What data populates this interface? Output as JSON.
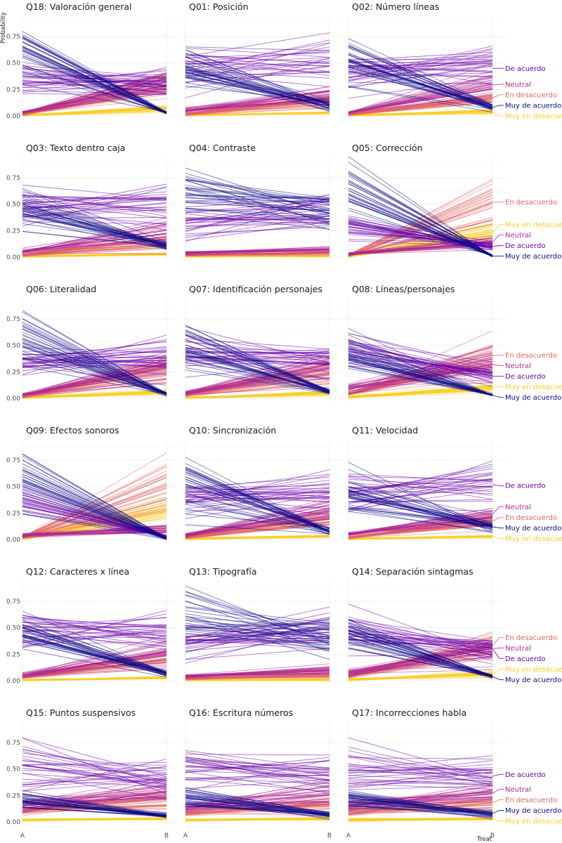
{
  "chart_data": {
    "type": "line",
    "description": "Faceted spaghetti plot of posterior-draw probabilities per response level, from A to B",
    "ylabel": "Probability",
    "xlabel": "Treat",
    "x_categories": [
      "A",
      "B"
    ],
    "ylim": [
      0,
      0.95
    ],
    "y_ticks": [
      0,
      0.25,
      0.5,
      0.75
    ],
    "y_tick_labels": [
      "0.00",
      "0.25",
      "0.50",
      "0.75"
    ],
    "grid": true,
    "colors": {
      "Muy de acuerdo": "#0d0887",
      "De acuerdo": "#6a00a8",
      "Neutral": "#b12a90",
      "En desacuerdo": "#e16462",
      "Muy en desacuerdo": "#fccd25"
    },
    "draws_per_level": 30,
    "facets": [
      {
        "title": "Q18: Valoración general",
        "levels": {
          "Muy de acuerdo": [
            0.6,
            0.03
          ],
          "De acuerdo": [
            0.36,
            0.3
          ],
          "Neutral": [
            0.03,
            0.3
          ],
          "En desacuerdo": [
            0.015,
            0.3
          ],
          "Muy en desacuerdo": [
            0.005,
            0.07
          ]
        },
        "labels": []
      },
      {
        "title": "Q01: Posición",
        "levels": {
          "Muy de acuerdo": [
            0.46,
            0.1
          ],
          "De acuerdo": [
            0.47,
            0.52
          ],
          "Neutral": [
            0.05,
            0.2
          ],
          "En desacuerdo": [
            0.015,
            0.15
          ],
          "Muy en desacuerdo": [
            0.005,
            0.03
          ]
        },
        "labels": []
      },
      {
        "title": "Q02: Número líneas",
        "levels": {
          "Muy de acuerdo": [
            0.55,
            0.08
          ],
          "De acuerdo": [
            0.4,
            0.45
          ],
          "Neutral": [
            0.03,
            0.29
          ],
          "En desacuerdo": [
            0.015,
            0.17
          ],
          "Muy en desacuerdo": [
            0.005,
            0.04
          ]
        },
        "labels": [
          {
            "text": "De acuerdo",
            "level": "De acuerdo",
            "y": 0.45
          },
          {
            "text": "Neutral",
            "level": "Neutral",
            "y": 0.3
          },
          {
            "text": "En desacuerdo",
            "level": "En desacuerdo",
            "y": 0.2
          },
          {
            "text": "Muy de acuerdo",
            "level": "Muy de acuerdo",
            "y": 0.1
          },
          {
            "text": "Muy en desacuerdo",
            "level": "Muy en desacuerdo",
            "y": 0.0
          }
        ]
      },
      {
        "title": "Q03: Texto dentro caja",
        "levels": {
          "Muy de acuerdo": [
            0.45,
            0.1
          ],
          "De acuerdo": [
            0.45,
            0.5
          ],
          "Neutral": [
            0.05,
            0.25
          ],
          "En desacuerdo": [
            0.02,
            0.15
          ],
          "Muy en desacuerdo": [
            0.005,
            0.03
          ]
        },
        "labels": []
      },
      {
        "title": "Q04: Contraste",
        "levels": {
          "Muy de acuerdo": [
            0.6,
            0.45
          ],
          "De acuerdo": [
            0.35,
            0.45
          ],
          "Neutral": [
            0.04,
            0.07
          ],
          "En desacuerdo": [
            0.02,
            0.04
          ],
          "Muy en desacuerdo": [
            0.005,
            0.01
          ]
        },
        "labels": []
      },
      {
        "title": "Q05: Corrección",
        "levels": {
          "Muy de acuerdo": [
            0.65,
            0.01
          ],
          "De acuerdo": [
            0.3,
            0.1
          ],
          "Neutral": [
            0.03,
            0.14
          ],
          "En desacuerdo": [
            0.015,
            0.52
          ],
          "Muy en desacuerdo": [
            0.005,
            0.23
          ]
        },
        "labels": [
          {
            "text": "En desacuerdo",
            "level": "En desacuerdo",
            "y": 0.52
          },
          {
            "text": "Muy en desacuerdo",
            "level": "Muy en desacuerdo",
            "y": 0.31
          },
          {
            "text": "Neutral",
            "level": "Neutral",
            "y": 0.21
          },
          {
            "text": "De acuerdo",
            "level": "De acuerdo",
            "y": 0.11
          },
          {
            "text": "Muy de acuerdo",
            "level": "Muy de acuerdo",
            "y": 0.01
          }
        ]
      },
      {
        "title": "Q06: Literalidad",
        "levels": {
          "Muy de acuerdo": [
            0.6,
            0.04
          ],
          "De acuerdo": [
            0.35,
            0.4
          ],
          "Neutral": [
            0.03,
            0.3
          ],
          "En desacuerdo": [
            0.015,
            0.28
          ],
          "Muy en desacuerdo": [
            0.005,
            0.06
          ]
        },
        "labels": []
      },
      {
        "title": "Q07: Identificación personajes",
        "levels": {
          "Muy de acuerdo": [
            0.48,
            0.06
          ],
          "De acuerdo": [
            0.42,
            0.36
          ],
          "Neutral": [
            0.05,
            0.3
          ],
          "En desacuerdo": [
            0.03,
            0.26
          ],
          "Muy en desacuerdo": [
            0.005,
            0.05
          ]
        },
        "labels": []
      },
      {
        "title": "Q08: Líneas/personajes",
        "levels": {
          "Muy de acuerdo": [
            0.4,
            0.03
          ],
          "De acuerdo": [
            0.45,
            0.21
          ],
          "Neutral": [
            0.1,
            0.32
          ],
          "En desacuerdo": [
            0.04,
            0.4
          ],
          "Muy en desacuerdo": [
            0.01,
            0.1
          ]
        },
        "labels": [
          {
            "text": "En desacuerdo",
            "level": "En desacuerdo",
            "y": 0.41
          },
          {
            "text": "Neutral",
            "level": "Neutral",
            "y": 0.31
          },
          {
            "text": "De acuerdo",
            "level": "De acuerdo",
            "y": 0.21
          },
          {
            "text": "Muy en desacuerdo",
            "level": "Muy en desacuerdo",
            "y": 0.11
          },
          {
            "text": "Muy de acuerdo",
            "level": "Muy de acuerdo",
            "y": 0.01
          }
        ]
      },
      {
        "title": "Q09: Efectos sonoros",
        "levels": {
          "Muy de acuerdo": [
            0.55,
            0.01
          ],
          "De acuerdo": [
            0.38,
            0.03
          ],
          "Neutral": [
            0.04,
            0.1
          ],
          "En desacuerdo": [
            0.02,
            0.52
          ],
          "Muy en desacuerdo": [
            0.005,
            0.28
          ]
        },
        "labels": []
      },
      {
        "title": "Q10: Sincronización",
        "levels": {
          "Muy de acuerdo": [
            0.52,
            0.08
          ],
          "De acuerdo": [
            0.42,
            0.45
          ],
          "Neutral": [
            0.04,
            0.27
          ],
          "En desacuerdo": [
            0.02,
            0.18
          ],
          "Muy en desacuerdo": [
            0.005,
            0.03
          ]
        },
        "labels": []
      },
      {
        "title": "Q11: Velocidad",
        "levels": {
          "Muy de acuerdo": [
            0.45,
            0.12
          ],
          "De acuerdo": [
            0.47,
            0.52
          ],
          "Neutral": [
            0.05,
            0.24
          ],
          "En desacuerdo": [
            0.02,
            0.17
          ],
          "Muy en desacuerdo": [
            0.005,
            0.03
          ]
        },
        "labels": [
          {
            "text": "De acuerdo",
            "level": "De acuerdo",
            "y": 0.51
          },
          {
            "text": "Neutral",
            "level": "Neutral",
            "y": 0.31
          },
          {
            "text": "En desacuerdo",
            "level": "En desacuerdo",
            "y": 0.21
          },
          {
            "text": "Muy de acuerdo",
            "level": "Muy de acuerdo",
            "y": 0.11
          },
          {
            "text": "Muy en desacuerdo",
            "level": "Muy en desacuerdo",
            "y": 0.01
          }
        ]
      },
      {
        "title": "Q12: Caracteres x línea",
        "levels": {
          "Muy de acuerdo": [
            0.45,
            0.07
          ],
          "De acuerdo": [
            0.46,
            0.45
          ],
          "Neutral": [
            0.05,
            0.28
          ],
          "En desacuerdo": [
            0.03,
            0.22
          ],
          "Muy en desacuerdo": [
            0.005,
            0.03
          ]
        },
        "labels": []
      },
      {
        "title": "Q13: Tipografía",
        "levels": {
          "Muy de acuerdo": [
            0.58,
            0.4
          ],
          "De acuerdo": [
            0.36,
            0.48
          ],
          "Neutral": [
            0.04,
            0.1
          ],
          "En desacuerdo": [
            0.02,
            0.05
          ],
          "Muy en desacuerdo": [
            0.005,
            0.01
          ]
        },
        "labels": []
      },
      {
        "title": "Q14: Separación sintagmas",
        "levels": {
          "Muy de acuerdo": [
            0.45,
            0.04
          ],
          "De acuerdo": [
            0.42,
            0.3
          ],
          "Neutral": [
            0.07,
            0.3
          ],
          "En desacuerdo": [
            0.04,
            0.33
          ],
          "Muy en desacuerdo": [
            0.01,
            0.06
          ]
        },
        "labels": [
          {
            "text": "En desacuerdo",
            "level": "En desacuerdo",
            "y": 0.41
          },
          {
            "text": "Neutral",
            "level": "Neutral",
            "y": 0.31
          },
          {
            "text": "De acuerdo",
            "level": "De acuerdo",
            "y": 0.21
          },
          {
            "text": "Muy en desacuerdo",
            "level": "Muy en desacuerdo",
            "y": 0.11
          },
          {
            "text": "Muy de acuerdo",
            "level": "Muy de acuerdo",
            "y": 0.01
          }
        ]
      },
      {
        "title": "Q15: Puntos suspensivos",
        "levels": {
          "Muy de acuerdo": [
            0.2,
            0.06
          ],
          "De acuerdo": [
            0.52,
            0.42
          ],
          "Neutral": [
            0.16,
            0.28
          ],
          "En desacuerdo": [
            0.1,
            0.2
          ],
          "Muy en desacuerdo": [
            0.02,
            0.03
          ]
        },
        "labels": []
      },
      {
        "title": "Q16: Escritura números",
        "levels": {
          "Muy de acuerdo": [
            0.22,
            0.07
          ],
          "De acuerdo": [
            0.52,
            0.45
          ],
          "Neutral": [
            0.15,
            0.27
          ],
          "En desacuerdo": [
            0.09,
            0.17
          ],
          "Muy en desacuerdo": [
            0.02,
            0.03
          ]
        },
        "labels": []
      },
      {
        "title": "Q17: Incorrecciones habla",
        "levels": {
          "Muy de acuerdo": [
            0.22,
            0.08
          ],
          "De acuerdo": [
            0.52,
            0.43
          ],
          "Neutral": [
            0.15,
            0.27
          ],
          "En desacuerdo": [
            0.09,
            0.18
          ],
          "Muy en desacuerdo": [
            0.02,
            0.03
          ]
        },
        "labels": [
          {
            "text": "De acuerdo",
            "level": "De acuerdo",
            "y": 0.45
          },
          {
            "text": "Neutral",
            "level": "Neutral",
            "y": 0.31
          },
          {
            "text": "En desacuerdo",
            "level": "En desacuerdo",
            "y": 0.21
          },
          {
            "text": "Muy de acuerdo",
            "level": "Muy de acuerdo",
            "y": 0.11
          },
          {
            "text": "Muy en desacuerdo",
            "level": "Muy en desacuerdo",
            "y": 0.01
          }
        ]
      }
    ]
  }
}
